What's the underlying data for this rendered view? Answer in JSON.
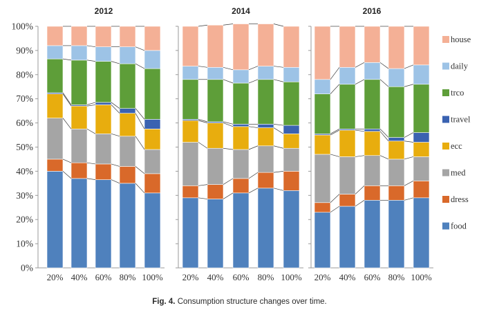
{
  "caption": {
    "label": "Fig. 4.",
    "text": "Consumption structure changes over time."
  },
  "chart_data": {
    "type": "bar",
    "stacked": true,
    "connector_lines": true,
    "ylim": [
      0,
      100
    ],
    "y_ticks": [
      "0%",
      "10%",
      "20%",
      "30%",
      "40%",
      "50%",
      "60%",
      "70%",
      "80%",
      "90%",
      "100%"
    ],
    "categories": [
      "20%",
      "40%",
      "60%",
      "80%",
      "100%"
    ],
    "legend_position": "right",
    "series": [
      {
        "name": "food",
        "color": "#4f81bd"
      },
      {
        "name": "dress",
        "color": "#d9692a"
      },
      {
        "name": "med",
        "color": "#a5a5a5"
      },
      {
        "name": "ecc",
        "color": "#e8ad0e"
      },
      {
        "name": "travel",
        "color": "#3a62b1"
      },
      {
        "name": "trco",
        "color": "#5e9e39"
      },
      {
        "name": "daily",
        "color": "#9dc3e6"
      },
      {
        "name": "house",
        "color": "#f4b096"
      }
    ],
    "panels": [
      {
        "title": "2012",
        "values": {
          "food": [
            40,
            37,
            36.5,
            35,
            31
          ],
          "dress": [
            5,
            6.5,
            6.5,
            7,
            8
          ],
          "med": [
            17,
            14,
            12.5,
            12.5,
            10
          ],
          "ecc": [
            10,
            9.5,
            12,
            9.5,
            8.5
          ],
          "travel": [
            0.5,
            0.5,
            1,
            2,
            4
          ],
          "trco": [
            14,
            18.5,
            17,
            18.5,
            21
          ],
          "daily": [
            5.5,
            6,
            6,
            7,
            7.5
          ],
          "house": [
            8,
            8,
            8.5,
            8.5,
            10
          ]
        }
      },
      {
        "title": "2014",
        "values": {
          "food": [
            29,
            28.5,
            31,
            33,
            32
          ],
          "dress": [
            5,
            6,
            6,
            6.5,
            8
          ],
          "med": [
            18,
            15,
            12,
            11,
            9.5
          ],
          "ecc": [
            9,
            10.5,
            9.5,
            7.5,
            6
          ],
          "travel": [
            0.5,
            0.5,
            1,
            1.5,
            3.5
          ],
          "trco": [
            16.5,
            17.5,
            17,
            18.5,
            18
          ],
          "daily": [
            5.5,
            5,
            5.5,
            5.5,
            6
          ],
          "house": [
            16.5,
            17.5,
            19,
            17.5,
            17
          ]
        }
      },
      {
        "title": "2016",
        "values": {
          "food": [
            23,
            25.5,
            28,
            28,
            29
          ],
          "dress": [
            4,
            5,
            6,
            6,
            7
          ],
          "med": [
            20,
            15.5,
            12.5,
            11,
            10
          ],
          "ecc": [
            8,
            11,
            10,
            7.5,
            6
          ],
          "travel": [
            0.5,
            0.5,
            1,
            1.5,
            4
          ],
          "trco": [
            16.5,
            18.5,
            20.5,
            21,
            20
          ],
          "daily": [
            6,
            7,
            7,
            7.5,
            8
          ],
          "house": [
            22,
            17,
            15,
            17.5,
            16
          ]
        }
      }
    ]
  }
}
